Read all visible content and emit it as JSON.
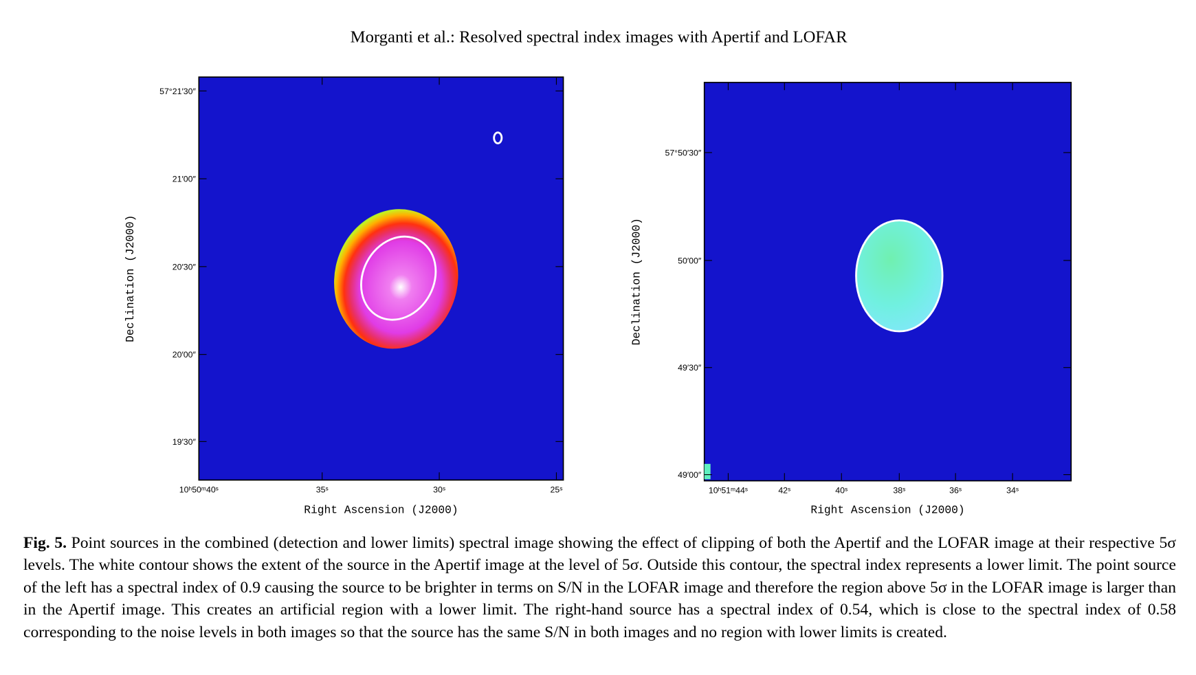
{
  "header": {
    "title": "Morganti et al.: Resolved spectral index images with Apertif and LOFAR"
  },
  "figure": {
    "panels": [
      {
        "yticks": [
          "57°21′30″",
          "21′00″",
          "20′30″",
          "20′00″",
          "19′30″"
        ],
        "xticks": [
          "10ʰ50ᵐ40ˢ",
          "35ˢ",
          "30ˢ",
          "25ˢ"
        ],
        "xlabel": "Right Ascension (J2000)",
        "ylabel": "Declination (J2000)"
      },
      {
        "yticks": [
          "57°50′30″",
          "50′00″",
          "49′30″",
          "49′00″"
        ],
        "xticks": [
          "10ʰ51ᵐ44ˢ",
          "42ˢ",
          "40ˢ",
          "38ˢ",
          "36ˢ",
          "34ˢ"
        ],
        "xlabel": "Right Ascension (J2000)",
        "ylabel": "Declination (J2000)"
      }
    ]
  },
  "caption": {
    "label": "Fig. 5.",
    "text": "Point sources in the combined (detection and lower limits) spectral image showing the effect of clipping of both the Apertif and the LOFAR image at their respective 5σ levels. The white contour shows the extent of the source in the Apertif image at the level of 5σ. Outside this contour, the spectral index represents a lower limit. The point source of the left has a spectral index of 0.9 causing the source to be brighter in terms on S/N in the LOFAR image and therefore the region above 5σ in the LOFAR image is larger than in the Apertif image. This creates an artificial region with a lower limit. The right-hand source has a spectral index of 0.54, which is close to the spectral index of 0.58 corresponding to the noise levels in both images so that the source has the same S/N in both images and no region with lower limits is created."
  }
}
